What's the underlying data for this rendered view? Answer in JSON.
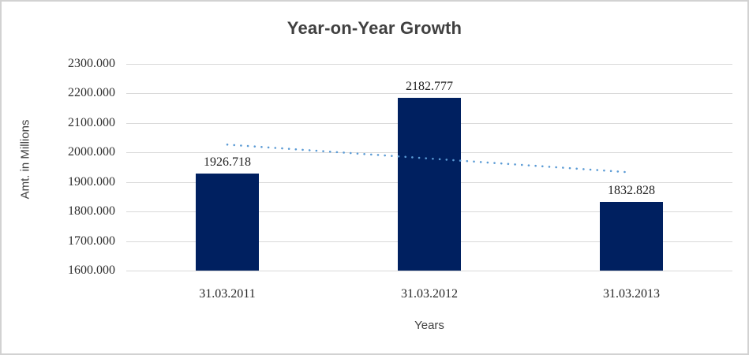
{
  "chart_data": {
    "type": "bar",
    "title": "Year-on-Year Growth",
    "xlabel": "Years",
    "ylabel": "Amt. in Millions",
    "categories": [
      "31.03.2011",
      "31.03.2012",
      "31.03.2013"
    ],
    "values": [
      1926.718,
      2182.777,
      1832.828
    ],
    "value_labels": [
      "1926.718",
      "2182.777",
      "1832.828"
    ],
    "ylim": [
      1600,
      2300
    ],
    "ytick_step": 100,
    "ytick_labels": [
      "2300.000",
      "2200.000",
      "2100.000",
      "2000.000",
      "1900.000",
      "1800.000",
      "1700.000",
      "1600.000"
    ],
    "grid": true,
    "legend": "none",
    "bar_color": "#002060",
    "gridline_color": "#d9d9d9",
    "trendline": {
      "style": "dotted",
      "color": "#5b9bd5",
      "start_value": 2027.7,
      "end_value": 1933.8
    }
  }
}
